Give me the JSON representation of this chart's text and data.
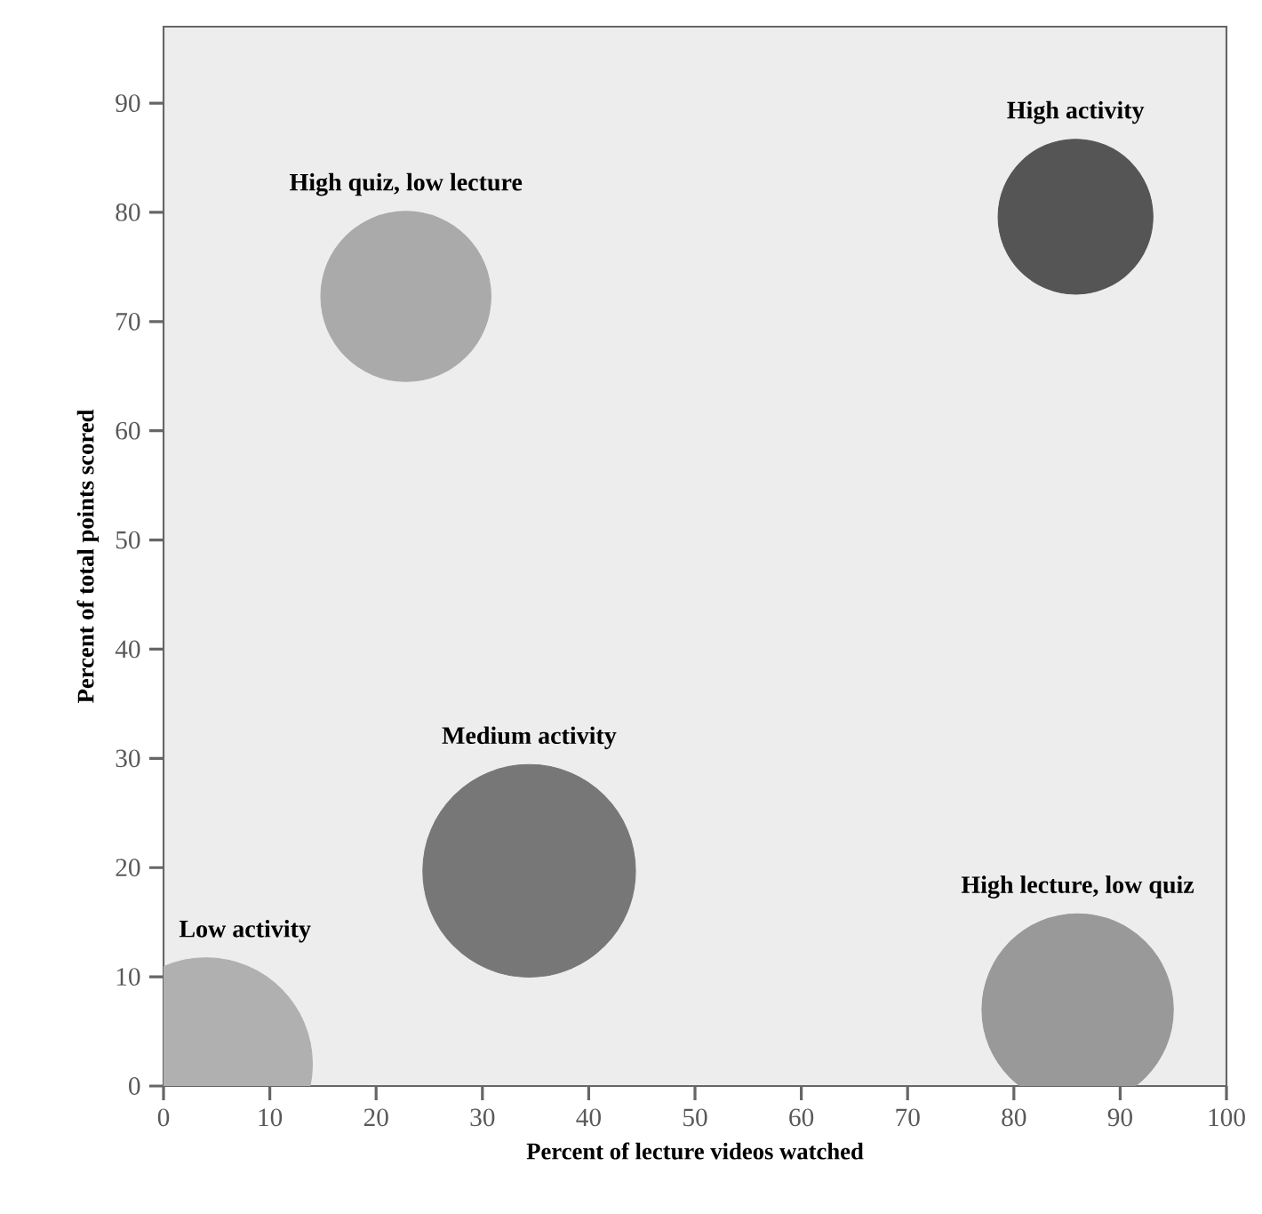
{
  "chart_data": {
    "type": "bubble",
    "xlabel": "Percent of lecture videos watched",
    "ylabel": "Percent of total points scored",
    "x": [
      85.8,
      22.8,
      34.4,
      4,
      86
    ],
    "values": [
      79.6,
      72.3,
      19.7,
      2,
      7
    ],
    "sizes": [
      0.53,
      0.64,
      1,
      1,
      0.81
    ],
    "colors": [
      "#555555",
      "#aaaaaa",
      "#777777",
      "#b0b0b0",
      "#999999"
    ],
    "xlim": [
      0,
      100
    ],
    "ylim": [
      0,
      97
    ],
    "xticks": [
      0,
      10,
      20,
      30,
      40,
      50,
      60,
      70,
      80,
      90,
      100
    ],
    "yticks": [
      0,
      10,
      20,
      30,
      40,
      50,
      60,
      70,
      80,
      90
    ],
    "grid": false,
    "annotations": [
      "High activity",
      "High quiz, low lecture",
      "Medium activity",
      "Low activity",
      "High lecture, low quiz"
    ]
  }
}
